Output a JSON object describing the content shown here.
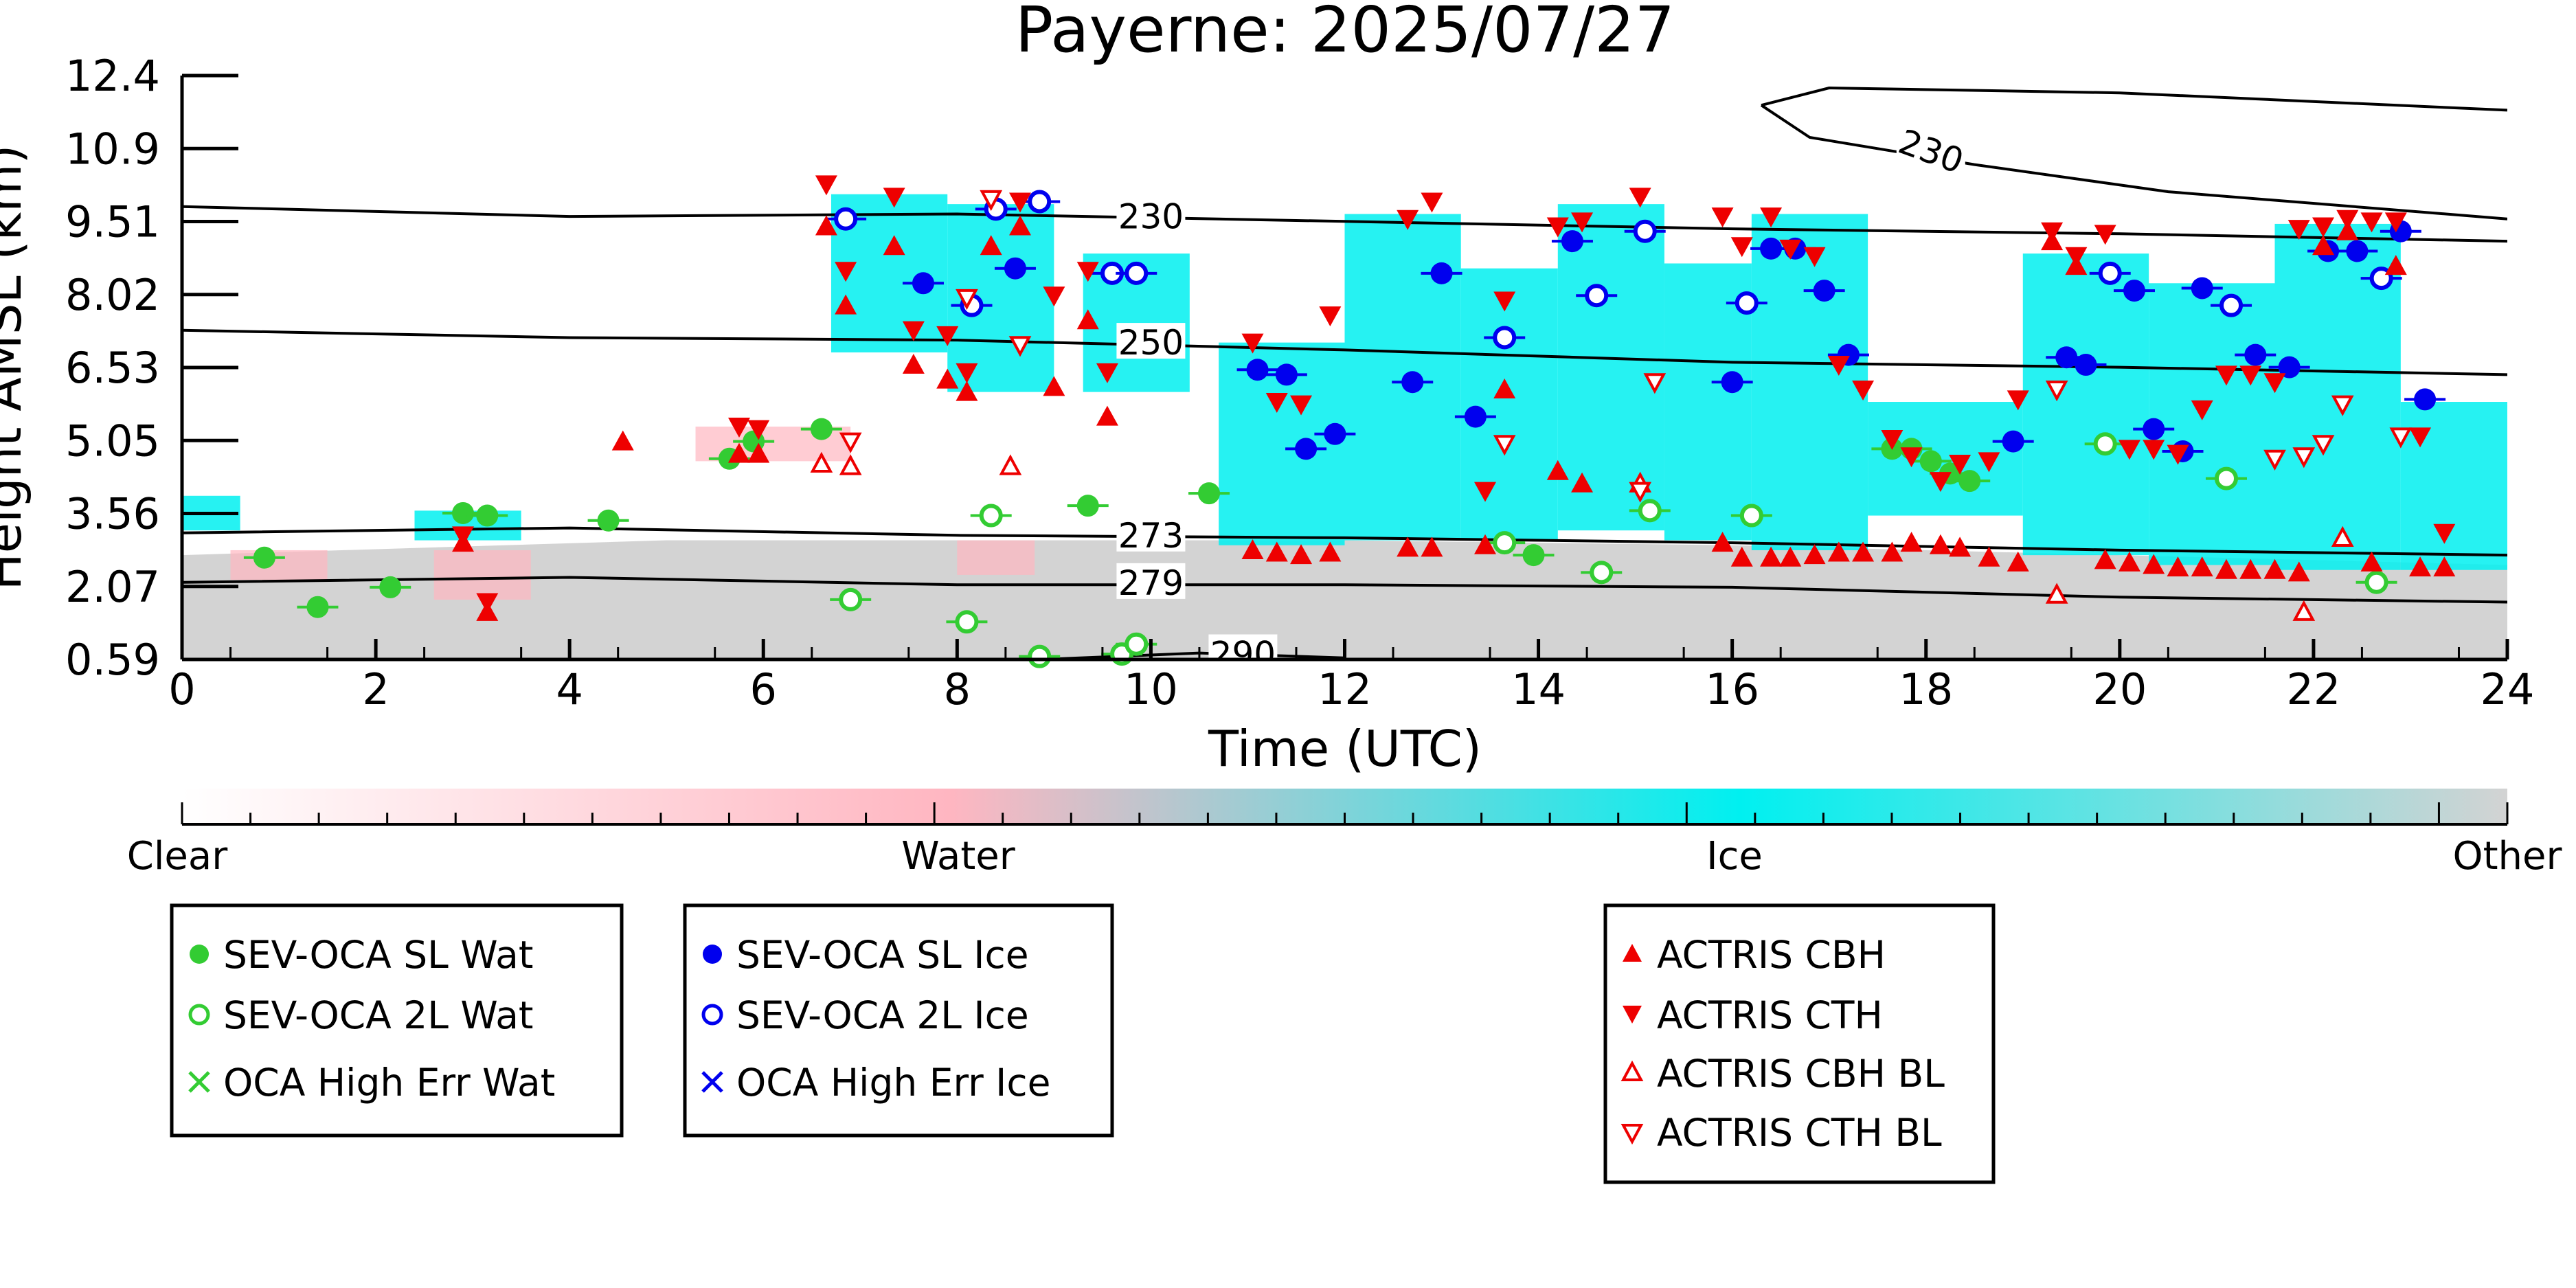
{
  "chart_data": {
    "type": "scatter",
    "title": "Payerne: 2025/07/27",
    "xlabel": "Time (UTC)",
    "ylabel": "Height AMSL (km)",
    "xlim": [
      0,
      24
    ],
    "ylim": [
      0.59,
      12.4
    ],
    "xticks": [
      "0",
      "2",
      "4",
      "6",
      "8",
      "10",
      "12",
      "14",
      "16",
      "18",
      "20",
      "22",
      "24"
    ],
    "yticks": [
      "0.59",
      "2.07",
      "3.56",
      "5.05",
      "6.53",
      "8.02",
      "9.51",
      "10.9",
      "12.4"
    ],
    "colorbar": {
      "labels": [
        "Clear",
        "Water",
        "Ice",
        "Other"
      ],
      "colors": [
        "#ffffff",
        "#ffb6c1",
        "#00f0f0",
        "#d3d3d3"
      ]
    },
    "contours": [
      {
        "label": "230",
        "points": [
          [
            0,
            9.75
          ],
          [
            4,
            9.55
          ],
          [
            8,
            9.6
          ],
          [
            12,
            9.45
          ],
          [
            16,
            9.3
          ],
          [
            20,
            9.2
          ],
          [
            24,
            9.05
          ]
        ]
      },
      {
        "label": "250",
        "points": [
          [
            0,
            7.25
          ],
          [
            4,
            7.1
          ],
          [
            8,
            7.05
          ],
          [
            12,
            6.85
          ],
          [
            16,
            6.6
          ],
          [
            20,
            6.5
          ],
          [
            24,
            6.35
          ]
        ]
      },
      {
        "label": "273",
        "points": [
          [
            0,
            3.15
          ],
          [
            4,
            3.25
          ],
          [
            8,
            3.1
          ],
          [
            12,
            3.05
          ],
          [
            16,
            2.95
          ],
          [
            20,
            2.8
          ],
          [
            24,
            2.7
          ]
        ]
      },
      {
        "label": "279",
        "points": [
          [
            0,
            2.15
          ],
          [
            4,
            2.25
          ],
          [
            8,
            2.1
          ],
          [
            12,
            2.1
          ],
          [
            16,
            2.05
          ],
          [
            20,
            1.85
          ],
          [
            24,
            1.75
          ]
        ]
      },
      {
        "label": "290",
        "points": [
          [
            9.0,
            0.6
          ],
          [
            10.5,
            0.72
          ],
          [
            12,
            0.62
          ]
        ]
      },
      {
        "label": "230",
        "points": [
          [
            16.3,
            11.8
          ],
          [
            16.8,
            11.15
          ],
          [
            18.5,
            10.6
          ],
          [
            20.5,
            10.05
          ],
          [
            24,
            9.5
          ]
        ]
      },
      {
        "label": "",
        "points": [
          [
            16.3,
            11.8
          ],
          [
            17.0,
            12.15
          ],
          [
            20,
            12.05
          ],
          [
            24,
            11.7
          ]
        ]
      }
    ],
    "legend": {
      "water": [
        {
          "label": "SEV-OCA SL Wat",
          "marker": "filled-circle",
          "color": "#33cc33"
        },
        {
          "label": "SEV-OCA 2L Wat",
          "marker": "open-circle",
          "color": "#33cc33"
        },
        {
          "label": "OCA High Err Wat",
          "marker": "x",
          "color": "#33cc33"
        }
      ],
      "ice": [
        {
          "label": "SEV-OCA SL Ice",
          "marker": "filled-circle",
          "color": "#0000ee"
        },
        {
          "label": "SEV-OCA 2L Ice",
          "marker": "open-circle",
          "color": "#0000ee"
        },
        {
          "label": "OCA High Err Ice",
          "marker": "x",
          "color": "#0000ee"
        }
      ],
      "actris": [
        {
          "label": "ACTRIS CBH",
          "marker": "triangle-up",
          "color": "#ee0000"
        },
        {
          "label": "ACTRIS CTH",
          "marker": "triangle-down",
          "color": "#ee0000"
        },
        {
          "label": "ACTRIS CBH BL",
          "marker": "open-triangle-up",
          "color": "#ee0000"
        },
        {
          "label": "ACTRIS CTH BL",
          "marker": "open-triangle-down",
          "color": "#ee0000"
        }
      ]
    },
    "series": [
      {
        "name": "SEV-OCA SL Wat",
        "x": [
          0.85,
          1.4,
          2.15,
          2.9,
          3.15,
          4.4,
          5.65,
          5.9,
          6.6,
          9.35,
          10.6,
          13.95,
          17.65,
          17.85,
          18.05,
          18.25,
          18.45
        ],
        "y": [
          2.65,
          1.65,
          2.05,
          3.55,
          3.5,
          3.4,
          4.65,
          5.0,
          5.25,
          3.7,
          3.95,
          2.7,
          4.85,
          4.85,
          4.6,
          4.35,
          4.2
        ]
      },
      {
        "name": "SEV-OCA 2L Wat",
        "x": [
          6.9,
          8.1,
          8.35,
          8.85,
          9.7,
          9.85,
          13.65,
          14.65,
          15.15,
          16.2,
          19.85,
          21.1,
          22.65
        ],
        "y": [
          1.8,
          1.35,
          3.5,
          0.65,
          0.7,
          0.9,
          2.95,
          2.35,
          3.6,
          3.5,
          4.95,
          4.25,
          2.15
        ]
      },
      {
        "name": "SEV-OCA SL Ice",
        "x": [
          7.65,
          8.6,
          11.1,
          11.4,
          11.6,
          11.9,
          12.7,
          13.0,
          13.35,
          14.35,
          16.0,
          16.4,
          16.65,
          16.95,
          17.2,
          18.9,
          19.45,
          19.65,
          20.15,
          20.35,
          20.65,
          20.85,
          21.4,
          21.75,
          22.15,
          22.45,
          22.9,
          23.15
        ],
        "y": [
          8.2,
          8.5,
          6.45,
          6.35,
          4.85,
          5.15,
          6.2,
          8.4,
          5.5,
          9.05,
          6.2,
          8.9,
          8.9,
          8.05,
          6.75,
          5.0,
          6.7,
          6.55,
          8.05,
          5.25,
          4.8,
          8.1,
          6.75,
          6.5,
          8.85,
          8.85,
          9.25,
          5.85
        ]
      },
      {
        "name": "SEV-OCA 2L Ice",
        "x": [
          6.85,
          8.15,
          8.4,
          8.85,
          9.6,
          9.85,
          13.65,
          14.6,
          15.1,
          16.15,
          19.9,
          21.15,
          22.7
        ],
        "y": [
          9.5,
          7.75,
          9.7,
          9.85,
          8.4,
          8.4,
          7.1,
          7.95,
          9.25,
          7.8,
          8.4,
          7.75,
          8.3
        ]
      },
      {
        "name": "ACTRIS CBH",
        "x": [
          2.9,
          3.15,
          5.75,
          5.95,
          6.65,
          6.85,
          7.35,
          7.55,
          7.9,
          8.1,
          8.35,
          8.65,
          9.0,
          9.35,
          9.55,
          11.05,
          11.3,
          11.55,
          11.85,
          12.65,
          12.9,
          13.45,
          13.65,
          14.2,
          14.45,
          15.05,
          15.9,
          16.1,
          16.4,
          16.6,
          16.85,
          17.1,
          17.35,
          17.65,
          17.85,
          18.15,
          18.35,
          18.65,
          18.95,
          19.3,
          19.55,
          19.85,
          20.1,
          20.35,
          20.6,
          20.85,
          21.1,
          21.35,
          21.6,
          21.85,
          22.1,
          22.35,
          22.6,
          22.85,
          23.1,
          23.35,
          4.55
        ],
        "y": [
          2.95,
          1.55,
          4.75,
          4.75,
          9.35,
          7.75,
          8.95,
          6.55,
          6.25,
          6.0,
          8.95,
          9.35,
          6.1,
          7.45,
          5.5,
          2.8,
          2.75,
          2.7,
          2.75,
          2.85,
          2.85,
          2.9,
          6.05,
          4.4,
          4.15,
          4.15,
          2.95,
          2.65,
          2.65,
          2.65,
          2.7,
          2.75,
          2.75,
          2.75,
          2.95,
          2.9,
          2.85,
          2.65,
          2.55,
          9.05,
          8.55,
          2.6,
          2.55,
          2.5,
          2.45,
          2.45,
          2.4,
          2.4,
          2.4,
          2.35,
          8.95,
          9.25,
          2.55,
          8.55,
          2.45,
          2.45,
          5.0
        ]
      },
      {
        "name": "ACTRIS CTH",
        "x": [
          2.9,
          3.15,
          5.75,
          5.95,
          6.65,
          6.85,
          7.35,
          7.55,
          7.9,
          8.1,
          8.35,
          8.65,
          9.0,
          9.35,
          9.55,
          11.05,
          11.3,
          11.55,
          11.85,
          12.65,
          12.9,
          13.45,
          13.65,
          14.2,
          14.45,
          15.05,
          15.9,
          16.1,
          16.4,
          16.6,
          16.85,
          17.1,
          17.35,
          17.65,
          17.85,
          18.15,
          18.35,
          18.65,
          18.95,
          19.3,
          19.55,
          19.85,
          20.1,
          20.35,
          20.6,
          20.85,
          21.1,
          21.35,
          21.6,
          21.85,
          22.1,
          22.35,
          22.6,
          22.85,
          23.1,
          23.35
        ],
        "y": [
          3.1,
          1.75,
          5.3,
          5.25,
          10.2,
          8.45,
          9.95,
          7.25,
          7.15,
          6.4,
          9.9,
          9.85,
          7.95,
          8.45,
          6.4,
          7.0,
          5.8,
          5.75,
          7.55,
          9.5,
          9.85,
          4.0,
          7.85,
          9.35,
          9.45,
          9.95,
          9.55,
          8.95,
          9.55,
          8.9,
          8.75,
          6.55,
          6.05,
          5.05,
          4.7,
          4.2,
          4.55,
          4.6,
          5.85,
          9.25,
          8.75,
          9.2,
          4.85,
          4.85,
          4.75,
          5.65,
          6.35,
          6.35,
          6.2,
          9.3,
          9.35,
          9.5,
          9.45,
          9.45,
          5.1,
          3.15
        ]
      },
      {
        "name": "ACTRIS CBH BL",
        "x": [
          6.6,
          6.9,
          8.55,
          15.05,
          19.35,
          21.9,
          22.3
        ],
        "y": [
          4.55,
          4.5,
          4.5,
          4.15,
          1.9,
          1.55,
          3.05
        ]
      },
      {
        "name": "ACTRIS CTH BL",
        "x": [
          6.9,
          8.1,
          8.35,
          8.65,
          13.65,
          15.05,
          15.2,
          19.35,
          21.6,
          21.9,
          22.1,
          22.3,
          22.9
        ],
        "y": [
          5.0,
          7.9,
          9.9,
          6.95,
          4.95,
          4.0,
          6.2,
          6.05,
          4.65,
          4.7,
          4.95,
          5.75,
          5.1
        ]
      }
    ]
  }
}
